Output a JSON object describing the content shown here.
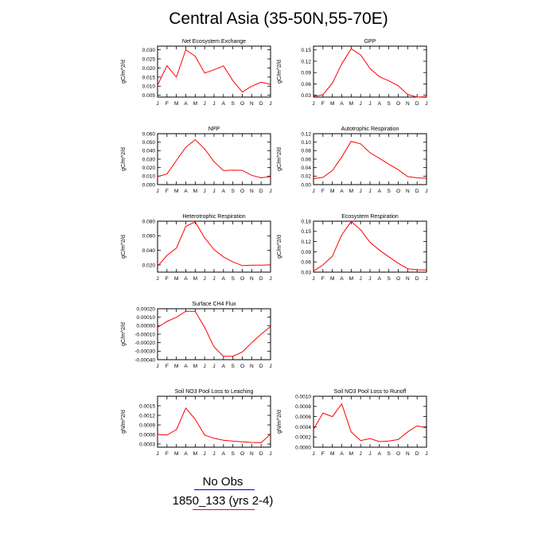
{
  "title": "Central Asia (35-50N,55-70E)",
  "months": [
    "J",
    "F",
    "M",
    "A",
    "M",
    "J",
    "J",
    "A",
    "S",
    "O",
    "N",
    "D",
    "J"
  ],
  "legend": {
    "no_obs_label": "No Obs",
    "run_label": "1850_133 (yrs 2-4)",
    "run_color": "#ff0000",
    "no_obs_color": "#0000cc"
  },
  "chart_data": [
    {
      "type": "line",
      "title": "Net Ecosystem Exchange",
      "ylabel": "gC/m^2/d",
      "ylim": [
        0.004,
        0.032
      ],
      "yticks": [
        "0.005",
        "0.010",
        "0.015",
        "0.020",
        "0.025",
        "0.030"
      ],
      "series": [
        {
          "values": [
            0.0105,
            0.0213,
            0.015,
            0.03,
            0.0265,
            0.0172,
            0.019,
            0.0212,
            0.013,
            0.0068,
            0.01,
            0.0122,
            0.011
          ]
        }
      ]
    },
    {
      "type": "line",
      "title": "GPP",
      "ylabel": "gC/m^2/d",
      "ylim": [
        0.025,
        0.16
      ],
      "yticks": [
        "0.03",
        "0.06",
        "0.09",
        "0.12",
        "0.15"
      ],
      "series": [
        {
          "values": [
            0.027,
            0.031,
            0.062,
            0.113,
            0.153,
            0.137,
            0.101,
            0.079,
            0.068,
            0.055,
            0.032,
            0.025,
            0.026
          ]
        }
      ]
    },
    {
      "type": "line",
      "title": "NPP",
      "ylabel": "gC/m^2/d",
      "ylim": [
        0.0,
        0.06
      ],
      "yticks": [
        "0.000",
        "0.010",
        "0.020",
        "0.030",
        "0.040",
        "0.050",
        "0.060"
      ],
      "series": [
        {
          "values": [
            0.0095,
            0.0125,
            0.0285,
            0.044,
            0.053,
            0.042,
            0.027,
            0.0165,
            0.017,
            0.0168,
            0.011,
            0.008,
            0.0095
          ]
        }
      ]
    },
    {
      "type": "line",
      "title": "Autotrophic Respiration",
      "ylabel": "gC/m^2/d",
      "ylim": [
        0.0,
        0.12
      ],
      "yticks": [
        "0.00",
        "0.02",
        "0.04",
        "0.06",
        "0.08",
        "0.10",
        "0.12"
      ],
      "series": [
        {
          "values": [
            0.014,
            0.017,
            0.033,
            0.065,
            0.102,
            0.096,
            0.075,
            0.062,
            0.048,
            0.035,
            0.019,
            0.016,
            0.015
          ]
        }
      ]
    },
    {
      "type": "line",
      "title": "Heterotrophic Respiration",
      "ylabel": "gC/m^2/d",
      "ylim": [
        0.01,
        0.08
      ],
      "yticks": [
        "0.020",
        "0.040",
        "0.060",
        "0.080"
      ],
      "series": [
        {
          "values": [
            0.018,
            0.033,
            0.043,
            0.073,
            0.079,
            0.057,
            0.041,
            0.031,
            0.024,
            0.019,
            0.0195,
            0.0195,
            0.02
          ]
        }
      ]
    },
    {
      "type": "line",
      "title": "Ecosystem Respiration",
      "ylabel": "gC/m^2/d",
      "ylim": [
        0.03,
        0.18
      ],
      "yticks": [
        "0.03",
        "0.06",
        "0.09",
        "0.12",
        "0.15",
        "0.18"
      ],
      "series": [
        {
          "values": [
            0.033,
            0.051,
            0.077,
            0.14,
            0.179,
            0.155,
            0.118,
            0.095,
            0.075,
            0.056,
            0.04,
            0.037,
            0.036
          ]
        }
      ]
    },
    {
      "type": "line",
      "title": "Surface CH4 Flux",
      "ylabel": "gC/m^2/d",
      "ylim": [
        -0.0004,
        0.0002
      ],
      "yticks": [
        "-0.00040",
        "-0.00030",
        "-0.00020",
        "-0.00010",
        "0.00000",
        "0.00010",
        "0.00020"
      ],
      "series": [
        {
          "values": [
            -2e-05,
            5e-05,
            0.0001,
            0.00017,
            0.00017,
            -2e-05,
            -0.00025,
            -0.00036,
            -0.00036,
            -0.00031,
            -0.0002,
            -0.0001,
            -1e-05
          ]
        }
      ]
    },
    {
      "type": "line",
      "title": "Soil NO3 Pool Loss to Leaching",
      "ylabel": "gN/m^2/d",
      "ylim": [
        0.0002,
        0.0018
      ],
      "yticks": [
        "0.0003",
        "0.0006",
        "0.0009",
        "0.0012",
        "0.0015"
      ],
      "series": [
        {
          "values": [
            0.0006,
            0.00058,
            0.00075,
            0.00143,
            0.00108,
            0.00058,
            0.00048,
            0.00042,
            0.00039,
            0.00037,
            0.00035,
            0.00034,
            0.00061
          ]
        }
      ]
    },
    {
      "type": "line",
      "title": "Soil NO3 Pool Loss to Runoff",
      "ylabel": "gN/m^2/d",
      "ylim": [
        0.0,
        0.001
      ],
      "yticks": [
        "0.0000",
        "0.0002",
        "0.0004",
        "0.0006",
        "0.0008",
        "0.0010"
      ],
      "series": [
        {
          "values": [
            0.00035,
            0.00067,
            0.0006,
            0.00085,
            0.0003,
            0.00013,
            0.00017,
            0.00011,
            0.00012,
            0.00015,
            0.0003,
            0.00042,
            0.00038
          ]
        }
      ]
    }
  ]
}
